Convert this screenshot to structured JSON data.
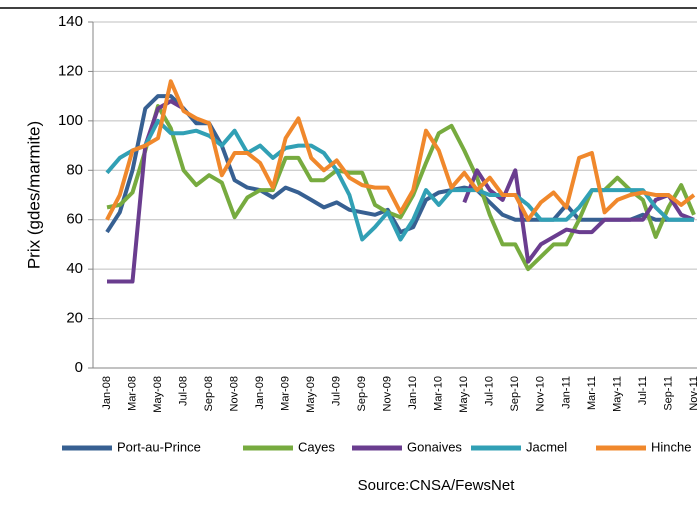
{
  "chart_data": {
    "type": "line",
    "y_label": "Prix (gdes/marmite)",
    "source": "Source:CNSA/FewsNet",
    "categories": [
      "Jan-08",
      null,
      "Mar-08",
      null,
      "May-08",
      null,
      "Jul-08",
      null,
      "Sep-08",
      null,
      "Nov-08",
      null,
      "Jan-09",
      null,
      "Mar-09",
      null,
      "May-09",
      null,
      "Jul-09",
      null,
      "Sep-09",
      null,
      "Nov-09",
      null,
      "Jan-10",
      null,
      "Mar-10",
      null,
      "May-10",
      null,
      "Jul-10",
      null,
      "Sep-10",
      null,
      "Nov-10",
      null,
      "Jan-11",
      null,
      "Mar-11",
      null,
      "May-11",
      null,
      "Jul-11",
      null,
      "Sep-11",
      null,
      "Nov-11"
    ],
    "ylim": [
      0,
      140
    ],
    "yticks": [
      0,
      20,
      40,
      60,
      80,
      100,
      120,
      140
    ],
    "grid": true,
    "legend": "bottom",
    "series": [
      {
        "name": "Port-au-Prince",
        "color": "#376092",
        "values": [
          55,
          63,
          80,
          105,
          110,
          110,
          105,
          99,
          99,
          90,
          76,
          73,
          72,
          69,
          73,
          71,
          68,
          65,
          67,
          64,
          63,
          62,
          64,
          55,
          57,
          68,
          71,
          72,
          73,
          72,
          67,
          62,
          60,
          60,
          60,
          60,
          66,
          60,
          60,
          60,
          60,
          60,
          62,
          60,
          60,
          60,
          60
        ]
      },
      {
        "name": "Cayes",
        "color": "#77ab3f",
        "values": [
          65,
          66,
          71,
          88,
          106,
          97,
          80,
          74,
          78,
          75,
          61,
          69,
          72,
          72,
          85,
          85,
          76,
          76,
          80,
          79,
          79,
          66,
          63,
          61,
          70,
          83,
          95,
          98,
          88,
          77,
          62,
          50,
          50,
          40,
          45,
          50,
          50,
          60,
          72,
          72,
          77,
          72,
          68,
          53,
          65,
          74,
          62
        ]
      },
      {
        "name": "Gonaives",
        "color": "#6a3d8f",
        "values": [
          35,
          35,
          35,
          90,
          105,
          108,
          105,
          null,
          null,
          null,
          null,
          null,
          null,
          null,
          null,
          null,
          null,
          null,
          null,
          null,
          null,
          null,
          null,
          null,
          null,
          null,
          null,
          null,
          67,
          80,
          72,
          68,
          80,
          43,
          50,
          53,
          56,
          55,
          55,
          60,
          60,
          60,
          60,
          68,
          70,
          62,
          60
        ]
      },
      {
        "name": "Jacmel",
        "color": "#31a0b5",
        "values": [
          79,
          85,
          88,
          90,
          100,
          95,
          95,
          96,
          94,
          90,
          96,
          87,
          90,
          85,
          89,
          90,
          90,
          87,
          80,
          70,
          52,
          57,
          63,
          52,
          60,
          72,
          66,
          72,
          72,
          72,
          70,
          70,
          70,
          66,
          60,
          60,
          60,
          65,
          72,
          72,
          72,
          72,
          72,
          65,
          60,
          60,
          60
        ]
      },
      {
        "name": "Hinche",
        "color": "#f0882c",
        "values": [
          60,
          70,
          88,
          90,
          93,
          116,
          104,
          101,
          99,
          78,
          87,
          87,
          83,
          73,
          93,
          101,
          85,
          80,
          84,
          77,
          74,
          73,
          73,
          63,
          72,
          96,
          88,
          73,
          79,
          72,
          77,
          70,
          70,
          60,
          67,
          71,
          65,
          85,
          87,
          63,
          68,
          70,
          71,
          70,
          70,
          66,
          70
        ]
      }
    ]
  }
}
